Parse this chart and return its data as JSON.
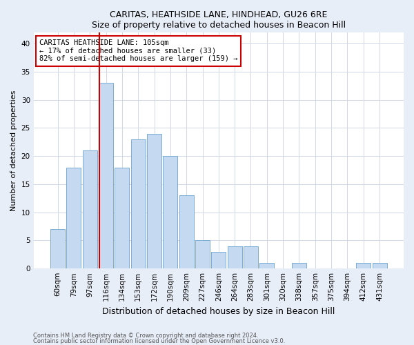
{
  "title1": "CARITAS, HEATHSIDE LANE, HINDHEAD, GU26 6RE",
  "title2": "Size of property relative to detached houses in Beacon Hill",
  "xlabel": "Distribution of detached houses by size in Beacon Hill",
  "ylabel": "Number of detached properties",
  "categories": [
    "60sqm",
    "79sqm",
    "97sqm",
    "116sqm",
    "134sqm",
    "153sqm",
    "172sqm",
    "190sqm",
    "209sqm",
    "227sqm",
    "246sqm",
    "264sqm",
    "283sqm",
    "301sqm",
    "320sqm",
    "338sqm",
    "357sqm",
    "375sqm",
    "394sqm",
    "412sqm",
    "431sqm"
  ],
  "values": [
    7,
    18,
    21,
    33,
    18,
    23,
    24,
    20,
    13,
    5,
    3,
    4,
    4,
    1,
    0,
    1,
    0,
    0,
    0,
    1,
    1
  ],
  "bar_color": "#c5d9f0",
  "bar_edge_color": "#7aadd4",
  "vline_x_idx": 2.575,
  "vline_color": "#cc0000",
  "annotation_text": "CARITAS HEATHSIDE LANE: 105sqm\n← 17% of detached houses are smaller (33)\n82% of semi-detached houses are larger (159) →",
  "annotation_box_color": "white",
  "annotation_box_edgecolor": "#cc0000",
  "ylim": [
    0,
    42
  ],
  "yticks": [
    0,
    5,
    10,
    15,
    20,
    25,
    30,
    35,
    40
  ],
  "footer1": "Contains HM Land Registry data © Crown copyright and database right 2024.",
  "footer2": "Contains public sector information licensed under the Open Government Licence v3.0.",
  "fig_bg_color": "#e8eef8",
  "plot_bg_color": "#ffffff",
  "grid_color": "#d0d8e8",
  "title_fontsize": 9,
  "tick_fontsize": 7.5,
  "ylabel_fontsize": 8,
  "xlabel_fontsize": 9
}
